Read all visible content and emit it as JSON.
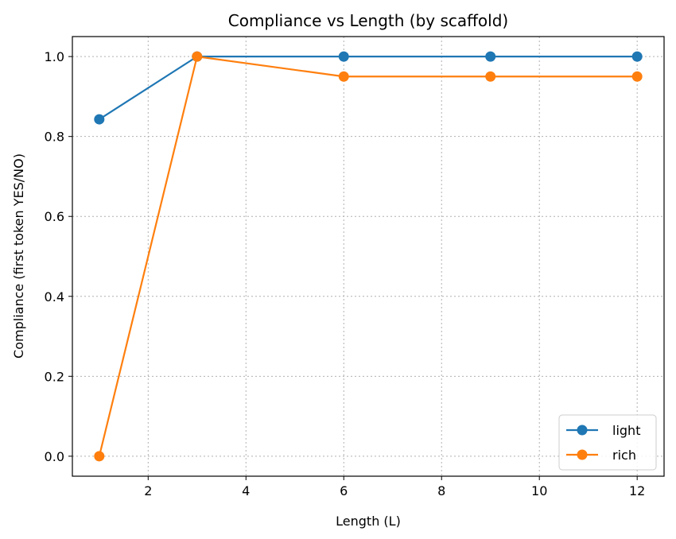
{
  "chart_data": {
    "type": "line",
    "title": "Compliance vs Length (by scaffold)",
    "xlabel": "Length (L)",
    "ylabel": "Compliance (first token YES/NO)",
    "x": [
      1,
      3,
      6,
      9,
      12
    ],
    "xlim": [
      0.45,
      12.55
    ],
    "ylim": [
      -0.05,
      1.05
    ],
    "xticks": [
      2,
      4,
      6,
      8,
      10,
      12
    ],
    "yticks": [
      0.0,
      0.2,
      0.4,
      0.6,
      0.8,
      1.0
    ],
    "xtick_labels": [
      "2",
      "4",
      "6",
      "8",
      "10",
      "12"
    ],
    "ytick_labels": [
      "0.0",
      "0.2",
      "0.4",
      "0.6",
      "0.8",
      "1.0"
    ],
    "grid": true,
    "legend_position": "bottom-right",
    "series": [
      {
        "name": "light",
        "color": "#1f77b4",
        "values": [
          0.843,
          1.0,
          1.0,
          1.0,
          1.0
        ]
      },
      {
        "name": "rich",
        "color": "#ff7f0e",
        "values": [
          0.0,
          1.0,
          0.95,
          0.95,
          0.95
        ]
      }
    ]
  }
}
